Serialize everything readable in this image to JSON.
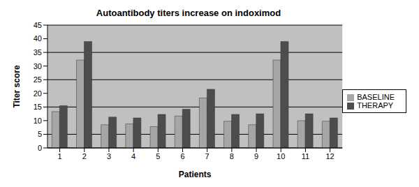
{
  "chart_data": {
    "type": "bar",
    "title": "Autoantibody titers increase on indoximod",
    "x_label": "Patients",
    "y_label": "Titer score",
    "categories": [
      "1",
      "2",
      "3",
      "4",
      "5",
      "6",
      "7",
      "8",
      "9",
      "10",
      "11",
      "12"
    ],
    "series": [
      {
        "name": "BASELINE",
        "color": "#a6a6a6",
        "values": [
          13.3,
          32.2,
          8.5,
          8.8,
          7.8,
          11.7,
          18.3,
          9.8,
          8.5,
          32.2,
          10,
          9.8
        ]
      },
      {
        "name": "THERAPY",
        "color": "#4d4d4d",
        "values": [
          15.5,
          39,
          11.3,
          11,
          12.3,
          14.2,
          21.5,
          12.3,
          12.5,
          39,
          12.5,
          11
        ]
      }
    ],
    "ylim": [
      0,
      45
    ],
    "yticks": [
      0,
      5,
      10,
      15,
      20,
      25,
      30,
      35,
      40,
      45
    ],
    "grid": true,
    "legend": "right"
  }
}
